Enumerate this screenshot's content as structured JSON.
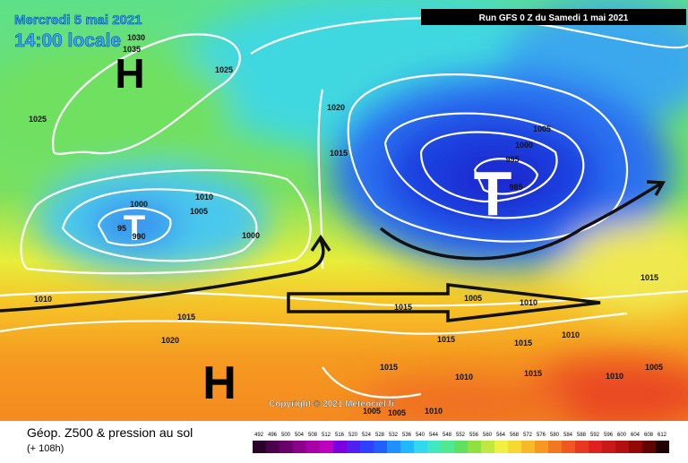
{
  "header": {
    "valid_date": "Mercredi 5 mai 2021",
    "valid_time": "14:00 locale",
    "run": "Run GFS 0 Z du Samedi 1 mai 2021"
  },
  "map": {
    "centers": [
      "H",
      "T",
      "T",
      "H"
    ],
    "isobar_labels": [
      "1030",
      "1035",
      "1025",
      "1025",
      "1020",
      "1015",
      "1005",
      "1000",
      "995",
      "985",
      "1010",
      "1000",
      "1005",
      "95",
      "990",
      "1000",
      "1010",
      "1005",
      "1010",
      "1015",
      "1015",
      "1015",
      "1010",
      "1020",
      "1015",
      "1015",
      "1015",
      "1015",
      "1010",
      "1005",
      "1010",
      "1005",
      "1005",
      "1010"
    ],
    "copyright": "Copyright © 2021 Meteociel.fr"
  },
  "footer": {
    "title": "Géop. Z500 & pression au sol",
    "lead": "(+ 108h)",
    "scale": [
      492,
      496,
      500,
      504,
      508,
      512,
      516,
      520,
      524,
      528,
      532,
      536,
      540,
      544,
      548,
      552,
      556,
      560,
      564,
      568,
      572,
      576,
      580,
      584,
      588,
      592,
      596,
      600,
      604,
      608,
      612
    ]
  }
}
